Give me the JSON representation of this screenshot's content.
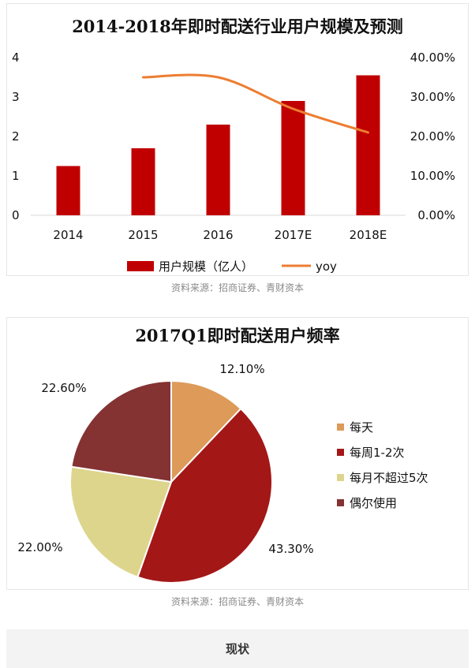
{
  "chart_data": [
    {
      "type": "bar",
      "title": "2014-2018年即时配送行业用户规模及预测",
      "categories": [
        "2014",
        "2015",
        "2016",
        "2017E",
        "2018E"
      ],
      "series": [
        {
          "name": "用户规模（亿人）",
          "type": "bar",
          "axis": "left",
          "color": "#c00000",
          "values": [
            1.25,
            1.7,
            2.3,
            2.9,
            3.55
          ]
        },
        {
          "name": "yoy",
          "type": "line",
          "axis": "right",
          "color": "#ed7d31",
          "x": [
            "2015",
            "2016",
            "2017E",
            "2018E"
          ],
          "values": [
            35.0,
            35.0,
            27.0,
            21.0
          ]
        }
      ],
      "ylim": [
        0,
        4
      ],
      "yticks": [
        "0",
        "1",
        "2",
        "3",
        "4"
      ],
      "y2lim": [
        0,
        40
      ],
      "y2ticks": [
        "0.00%",
        "10.00%",
        "20.00%",
        "30.00%",
        "40.00%"
      ],
      "legend": "bottom",
      "grid": false
    },
    {
      "type": "pie",
      "title": "2017Q1即时配送用户频率",
      "slices": [
        {
          "name": "每天",
          "value": 12.1,
          "label": "12.10%",
          "color": "#dd9a58"
        },
        {
          "name": "每周1-2次",
          "value": 43.3,
          "label": "43.30%",
          "color": "#a41717"
        },
        {
          "name": "每月不超过5次",
          "value": 22.0,
          "label": "22.00%",
          "color": "#ddd58c"
        },
        {
          "name": "偶尔使用",
          "value": 22.6,
          "label": "22.60%",
          "color": "#843232"
        }
      ],
      "legend": "right"
    }
  ],
  "sources": [
    "资料来源：招商证券、青财资本",
    "资料来源：招商证券、青财资本"
  ],
  "footer": {
    "label": "现状"
  }
}
